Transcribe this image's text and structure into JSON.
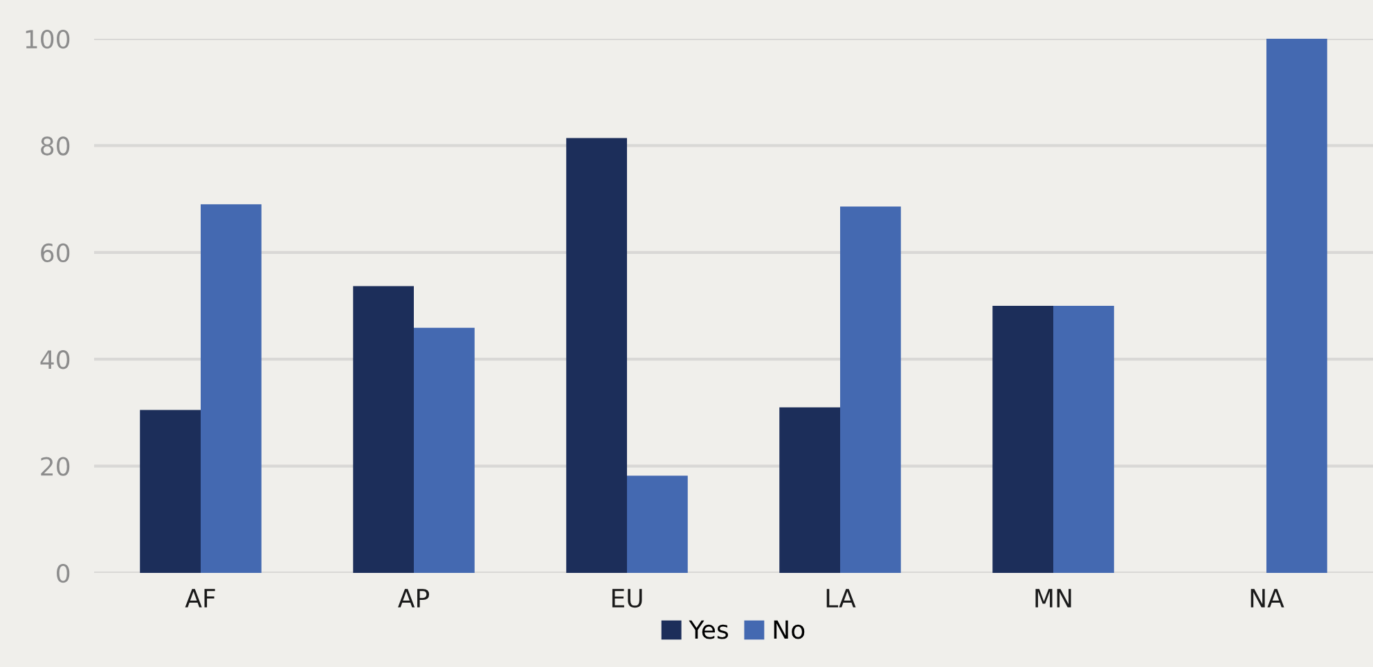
{
  "chart_data": {
    "type": "bar",
    "categories": [
      "AF",
      "AP",
      "EU",
      "LA",
      "MN",
      "NA"
    ],
    "series": [
      {
        "name": "Yes",
        "color": "#1c2e5a",
        "values": [
          30.5,
          53.7,
          81.4,
          31.0,
          50,
          0
        ]
      },
      {
        "name": "No",
        "color": "#4469b1",
        "values": [
          69.0,
          45.9,
          18.2,
          68.6,
          50,
          100
        ]
      }
    ],
    "ylim": [
      0,
      100
    ],
    "yticks": [
      0,
      20,
      40,
      60,
      80,
      100
    ],
    "grid": "y",
    "legend": "bottom"
  }
}
